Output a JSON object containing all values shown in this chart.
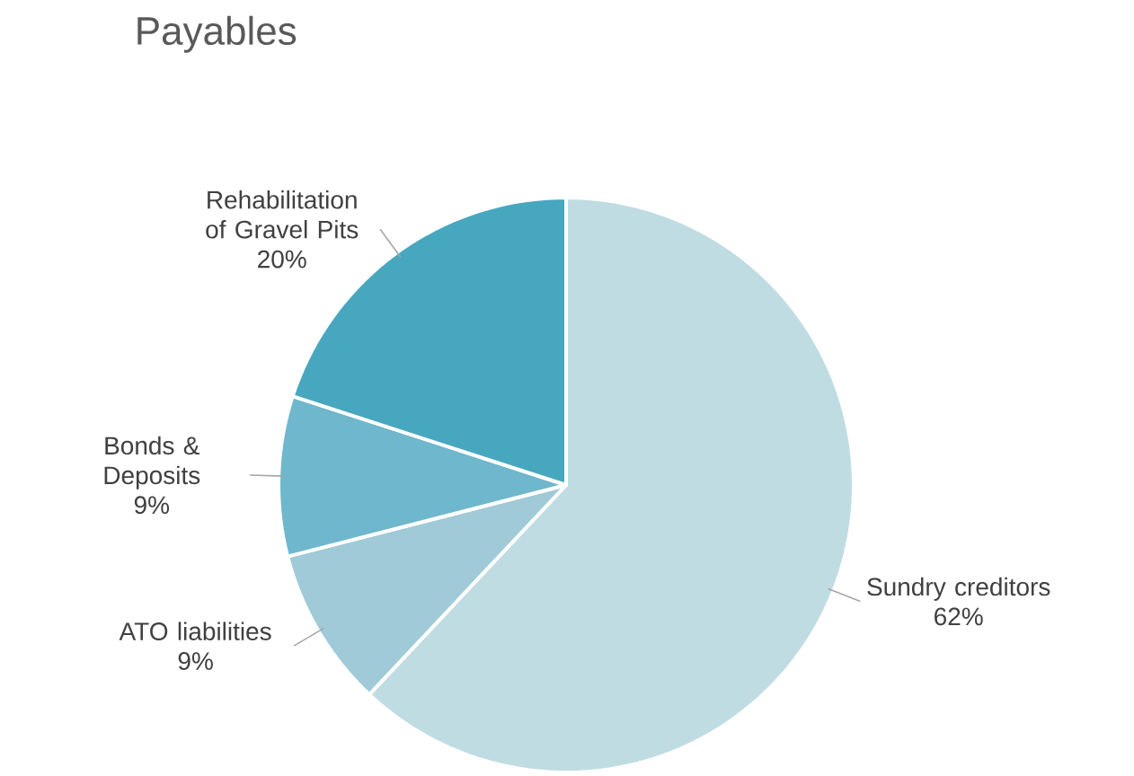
{
  "chart_data": {
    "type": "pie",
    "title": "Payables",
    "categories": [
      "Sundry creditors",
      "ATO liabilities",
      "Bonds & Deposits",
      "Rehabilitation of Gravel Pits"
    ],
    "values": [
      62,
      9,
      9,
      20
    ],
    "value_labels": [
      "62%",
      "9%",
      "9%",
      "20%"
    ],
    "colors": [
      "#c0dce3",
      "#a0cad8",
      "#6fb7cc",
      "#47a7bf"
    ]
  }
}
